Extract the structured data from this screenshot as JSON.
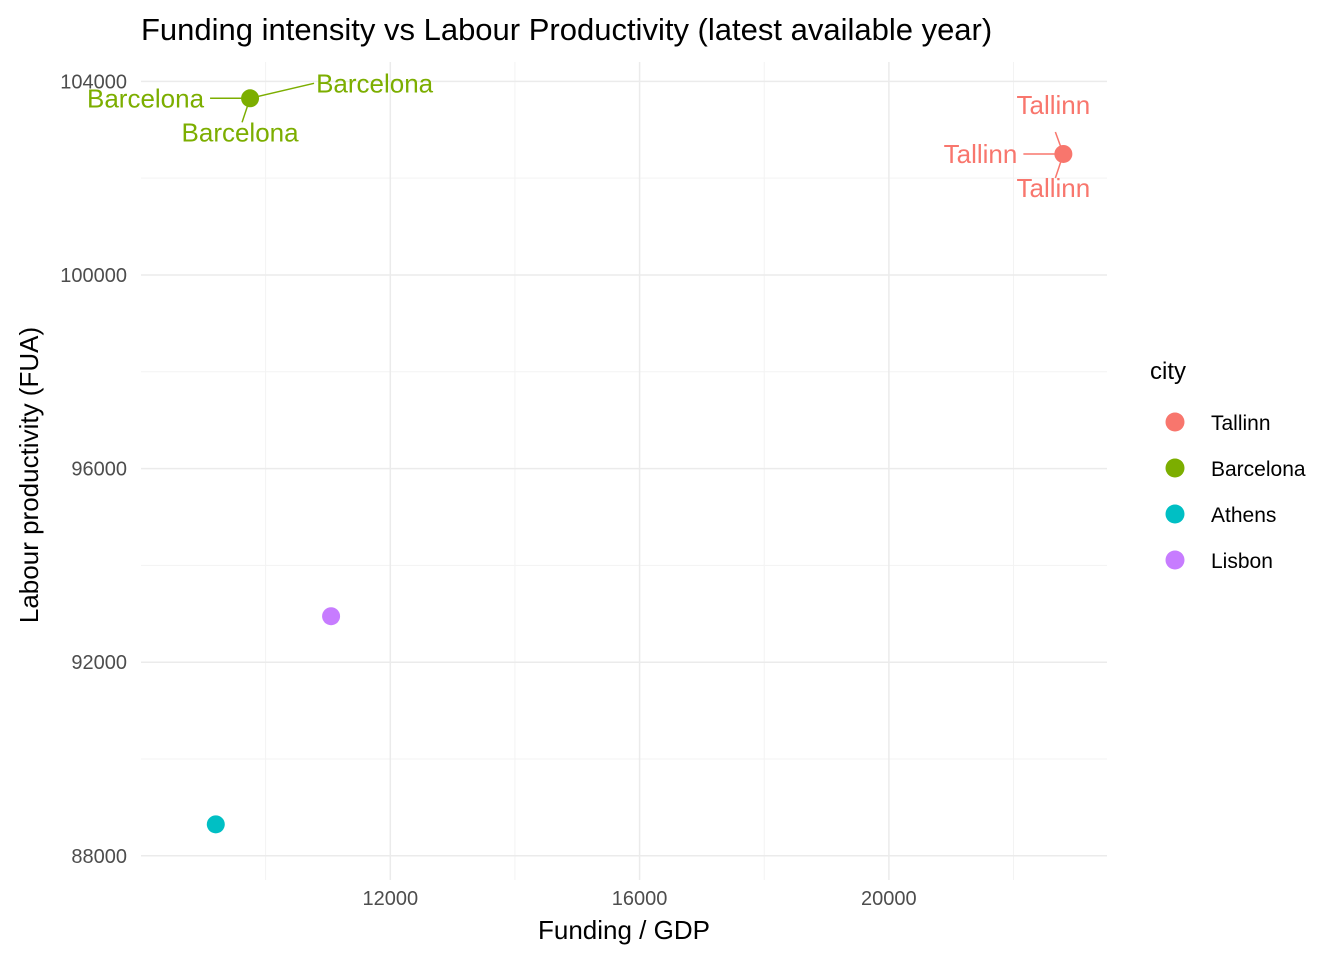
{
  "chart_data": {
    "type": "scatter",
    "title": "Funding intensity vs Labour Productivity (latest available year)",
    "xlabel": "Funding / GDP",
    "ylabel": "Labour productivity (FUA)",
    "xlim": [
      8000,
      23500
    ],
    "ylim": [
      87500,
      104400
    ],
    "x_ticks": [
      12000,
      16000,
      20000
    ],
    "x_minor": [
      10000,
      14000,
      18000,
      22000
    ],
    "y_ticks": [
      88000,
      92000,
      96000,
      100000,
      104000
    ],
    "y_minor": [
      90000,
      94000,
      98000,
      102000
    ],
    "grid": true,
    "legend": {
      "title": "city",
      "position": "right"
    },
    "series": [
      {
        "name": "Tallinn",
        "color": "#F8766D",
        "points": [
          {
            "x": 22800,
            "y": 102500
          }
        ],
        "labels": [
          {
            "text": "Tallinn",
            "side": "above"
          },
          {
            "text": "Tallinn",
            "side": "left"
          },
          {
            "text": "Tallinn",
            "side": "below"
          }
        ]
      },
      {
        "name": "Barcelona",
        "color": "#7CAE00",
        "points": [
          {
            "x": 9750,
            "y": 103650
          }
        ],
        "labels": [
          {
            "text": "Barcelona",
            "side": "left"
          },
          {
            "text": "Barcelona",
            "side": "right"
          },
          {
            "text": "Barcelona",
            "side": "below"
          }
        ]
      },
      {
        "name": "Athens",
        "color": "#00BFC4",
        "points": [
          {
            "x": 9200,
            "y": 88650
          }
        ],
        "labels": []
      },
      {
        "name": "Lisbon",
        "color": "#C77CFF",
        "points": [
          {
            "x": 11050,
            "y": 92950
          }
        ],
        "labels": []
      }
    ]
  }
}
